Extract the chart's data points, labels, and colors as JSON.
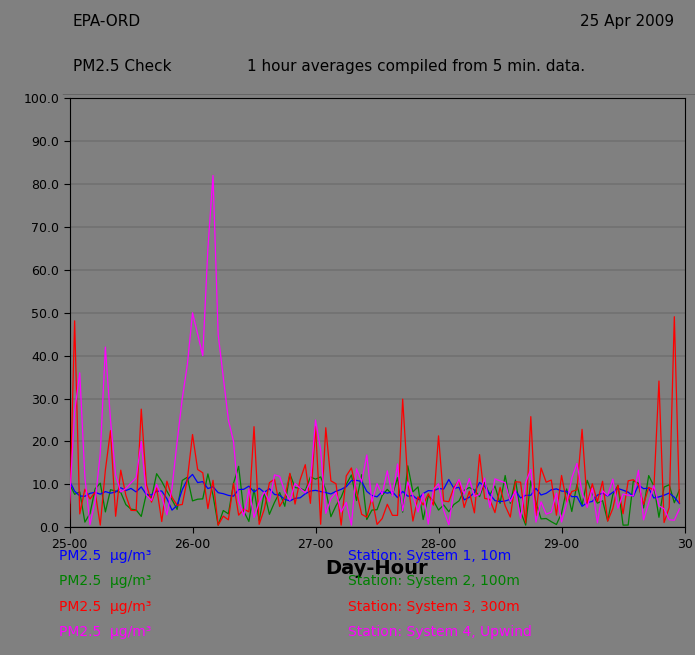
{
  "title_left": "EPA-ORD",
  "title_right": "25 Apr 2009",
  "subtitle_left": "PM2.5 Check",
  "subtitle_center": "1 hour averages compiled from 5 min. data.",
  "xlabel": "Day-Hour",
  "xlim": [
    0,
    120
  ],
  "ylim": [
    0.0,
    100.0
  ],
  "yticks": [
    0.0,
    10.0,
    20.0,
    30.0,
    40.0,
    50.0,
    60.0,
    70.0,
    80.0,
    90.0,
    100.0
  ],
  "xtick_positions": [
    0,
    24,
    48,
    72,
    96,
    120
  ],
  "xtick_labels": [
    "25-00",
    "26-00",
    "27-00",
    "28-00",
    "29-00",
    "30"
  ],
  "bg_color": "#808080",
  "colors": {
    "system1": "#0000FF",
    "system2": "#008000",
    "system3": "#FF0000",
    "system4": "#FF00FF"
  },
  "legend_labels_left": [
    "PM2.5  μg/m³",
    "PM2.5  μg/m³",
    "PM2.5  μg/m³",
    "PM2.5  μg/m³"
  ],
  "legend_labels_right": [
    "Station: System 1, 10m",
    "Station: System 2, 100m",
    "Station: System 3, 300m",
    "Station: System 4, Upwind"
  ],
  "legend_colors": [
    "#0000FF",
    "#008000",
    "#FF0000",
    "#FF00FF"
  ]
}
